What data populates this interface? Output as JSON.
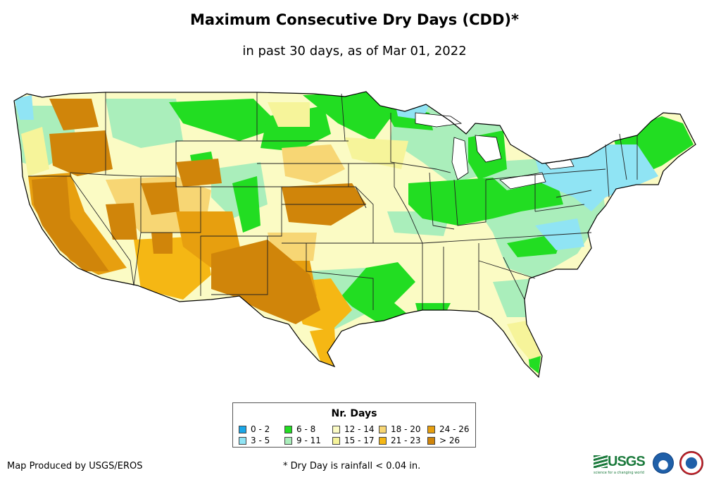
{
  "title": "Maximum Consecutive Dry Days (CDD)*",
  "subtitle": "in past 30 days, as of Mar 01, 2022",
  "legend": {
    "title": "Nr. Days",
    "items": [
      {
        "label": "0 - 2",
        "color": "#1aa7e8"
      },
      {
        "label": "3 - 5",
        "color": "#90e4f4"
      },
      {
        "label": "6 - 8",
        "color": "#22dd22"
      },
      {
        "label": "9 - 11",
        "color": "#aaeebb"
      },
      {
        "label": "12 - 14",
        "color": "#fbfbc4"
      },
      {
        "label": "15 - 17",
        "color": "#f6f49a"
      },
      {
        "label": "18 - 20",
        "color": "#f7d674"
      },
      {
        "label": "21 - 23",
        "color": "#f5b714"
      },
      {
        "label": "24 - 26",
        "color": "#e79f0f"
      },
      {
        "label": "> 26",
        "color": "#d0850a"
      }
    ]
  },
  "credit": "Map Produced by USGS/EROS",
  "footnote": "* Dry Day is rainfall < 0.04 in.",
  "logos": {
    "usgs": "USGS",
    "usgs_tagline": "science for a changing world",
    "noaa_icon": "noaa-logo",
    "nws_icon": "nws-logo"
  }
}
